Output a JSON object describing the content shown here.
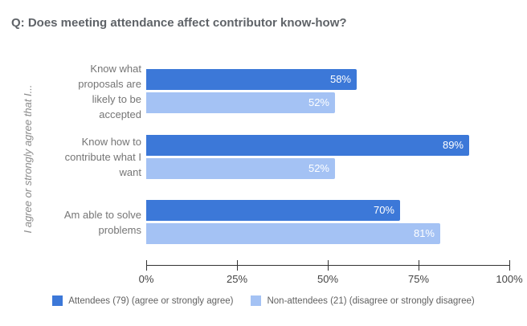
{
  "chart_data": {
    "type": "bar",
    "orientation": "horizontal",
    "title": "Q: Does meeting attendance affect contributor know-how?",
    "xlabel": "",
    "ylabel": "I agree or strongly agree that I...",
    "categories": [
      "Know what proposals are likely to be accepted",
      "Know how to contribute what I want",
      "Am able to solve problems"
    ],
    "category_lines": [
      [
        "Know what",
        "proposals are",
        "likely to be",
        "accepted"
      ],
      [
        "Know how to",
        "contribute what I",
        "want"
      ],
      [
        "Am able to solve",
        "problems"
      ]
    ],
    "series": [
      {
        "name": "Attendees (79) (agree or strongly agree)",
        "color": "#3c78d8",
        "values": [
          58,
          89,
          70
        ]
      },
      {
        "name": "Non-attendees (21) (disagree or strongly disagree)",
        "color": "#a4c2f4",
        "values": [
          52,
          52,
          81
        ]
      }
    ],
    "value_suffix": "%",
    "x_ticks": [
      {
        "label": "0%",
        "value": 0
      },
      {
        "label": "25%",
        "value": 25
      },
      {
        "label": "50%",
        "value": 50
      },
      {
        "label": "75%",
        "value": 75
      },
      {
        "label": "100%",
        "value": 100
      }
    ],
    "xlim": [
      0,
      100
    ],
    "grid": false,
    "legend_position": "bottom"
  },
  "colors": {
    "background": "#ffffff",
    "title_text": "#5f6368",
    "category_text": "#757575",
    "axis": "#333333",
    "value_text": "#ffffff"
  }
}
